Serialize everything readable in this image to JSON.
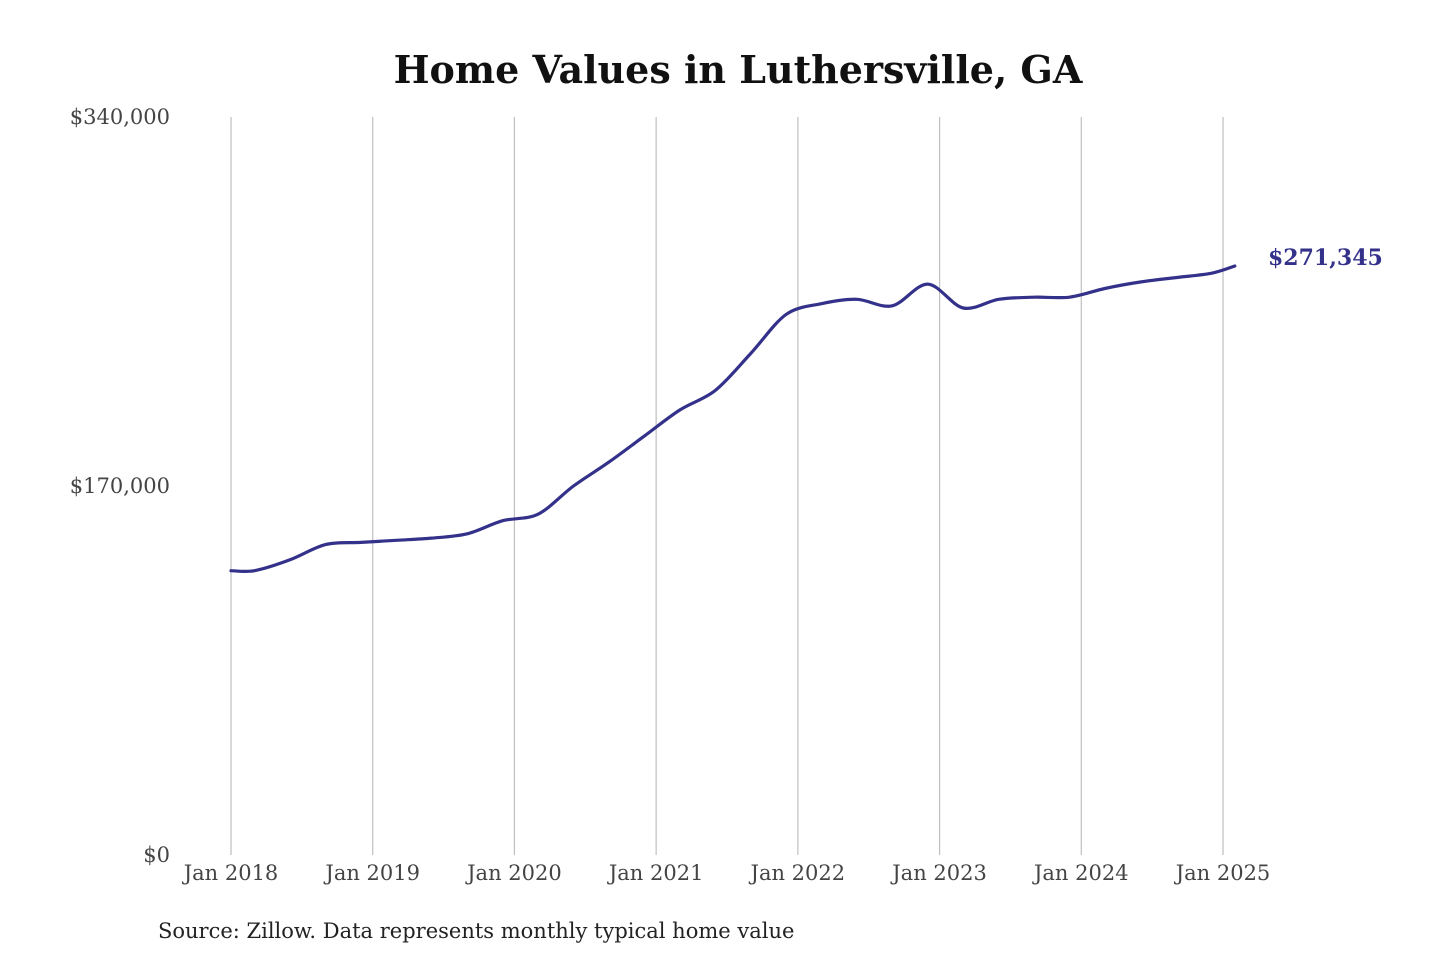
{
  "chart_data": {
    "type": "line",
    "title": "Home Values in Luthersville, GA",
    "xlabel": "",
    "ylabel": "",
    "ylim": [
      0,
      340000
    ],
    "y_ticks": [
      {
        "value": 0,
        "label": "$0"
      },
      {
        "value": 170000,
        "label": "$170,000"
      },
      {
        "value": 340000,
        "label": "$340,000"
      }
    ],
    "x_ticks": [
      {
        "value": "2018-01",
        "label": "Jan 2018"
      },
      {
        "value": "2019-01",
        "label": "Jan 2019"
      },
      {
        "value": "2020-01",
        "label": "Jan 2020"
      },
      {
        "value": "2021-01",
        "label": "Jan 2021"
      },
      {
        "value": "2022-01",
        "label": "Jan 2022"
      },
      {
        "value": "2023-01",
        "label": "Jan 2023"
      },
      {
        "value": "2024-01",
        "label": "Jan 2024"
      },
      {
        "value": "2025-01",
        "label": "Jan 2025"
      }
    ],
    "grid": "vertical",
    "line_color": "#33318a",
    "series": [
      {
        "x": [
          "2018-01",
          "2018-03",
          "2018-06",
          "2018-09",
          "2018-12",
          "2019-03",
          "2019-06",
          "2019-09",
          "2019-12",
          "2020-03",
          "2020-06",
          "2020-09",
          "2020-12",
          "2021-03",
          "2021-06",
          "2021-09",
          "2021-12",
          "2022-03",
          "2022-06",
          "2022-09",
          "2022-12",
          "2023-03",
          "2023-06",
          "2023-09",
          "2023-12",
          "2024-03",
          "2024-06",
          "2024-09",
          "2024-12",
          "2025-02"
        ],
        "y": [
          131000,
          131000,
          136000,
          143000,
          144000,
          145000,
          146000,
          148000,
          154000,
          157000,
          170000,
          181000,
          193000,
          205000,
          214000,
          231000,
          249000,
          254000,
          256000,
          253000,
          263000,
          252000,
          256000,
          257000,
          257000,
          261000,
          264000,
          266000,
          268000,
          271345
        ]
      }
    ],
    "end_label": "$271,345"
  },
  "footer": {
    "source": "Source: Zillow. Data represents monthly typical home value"
  }
}
